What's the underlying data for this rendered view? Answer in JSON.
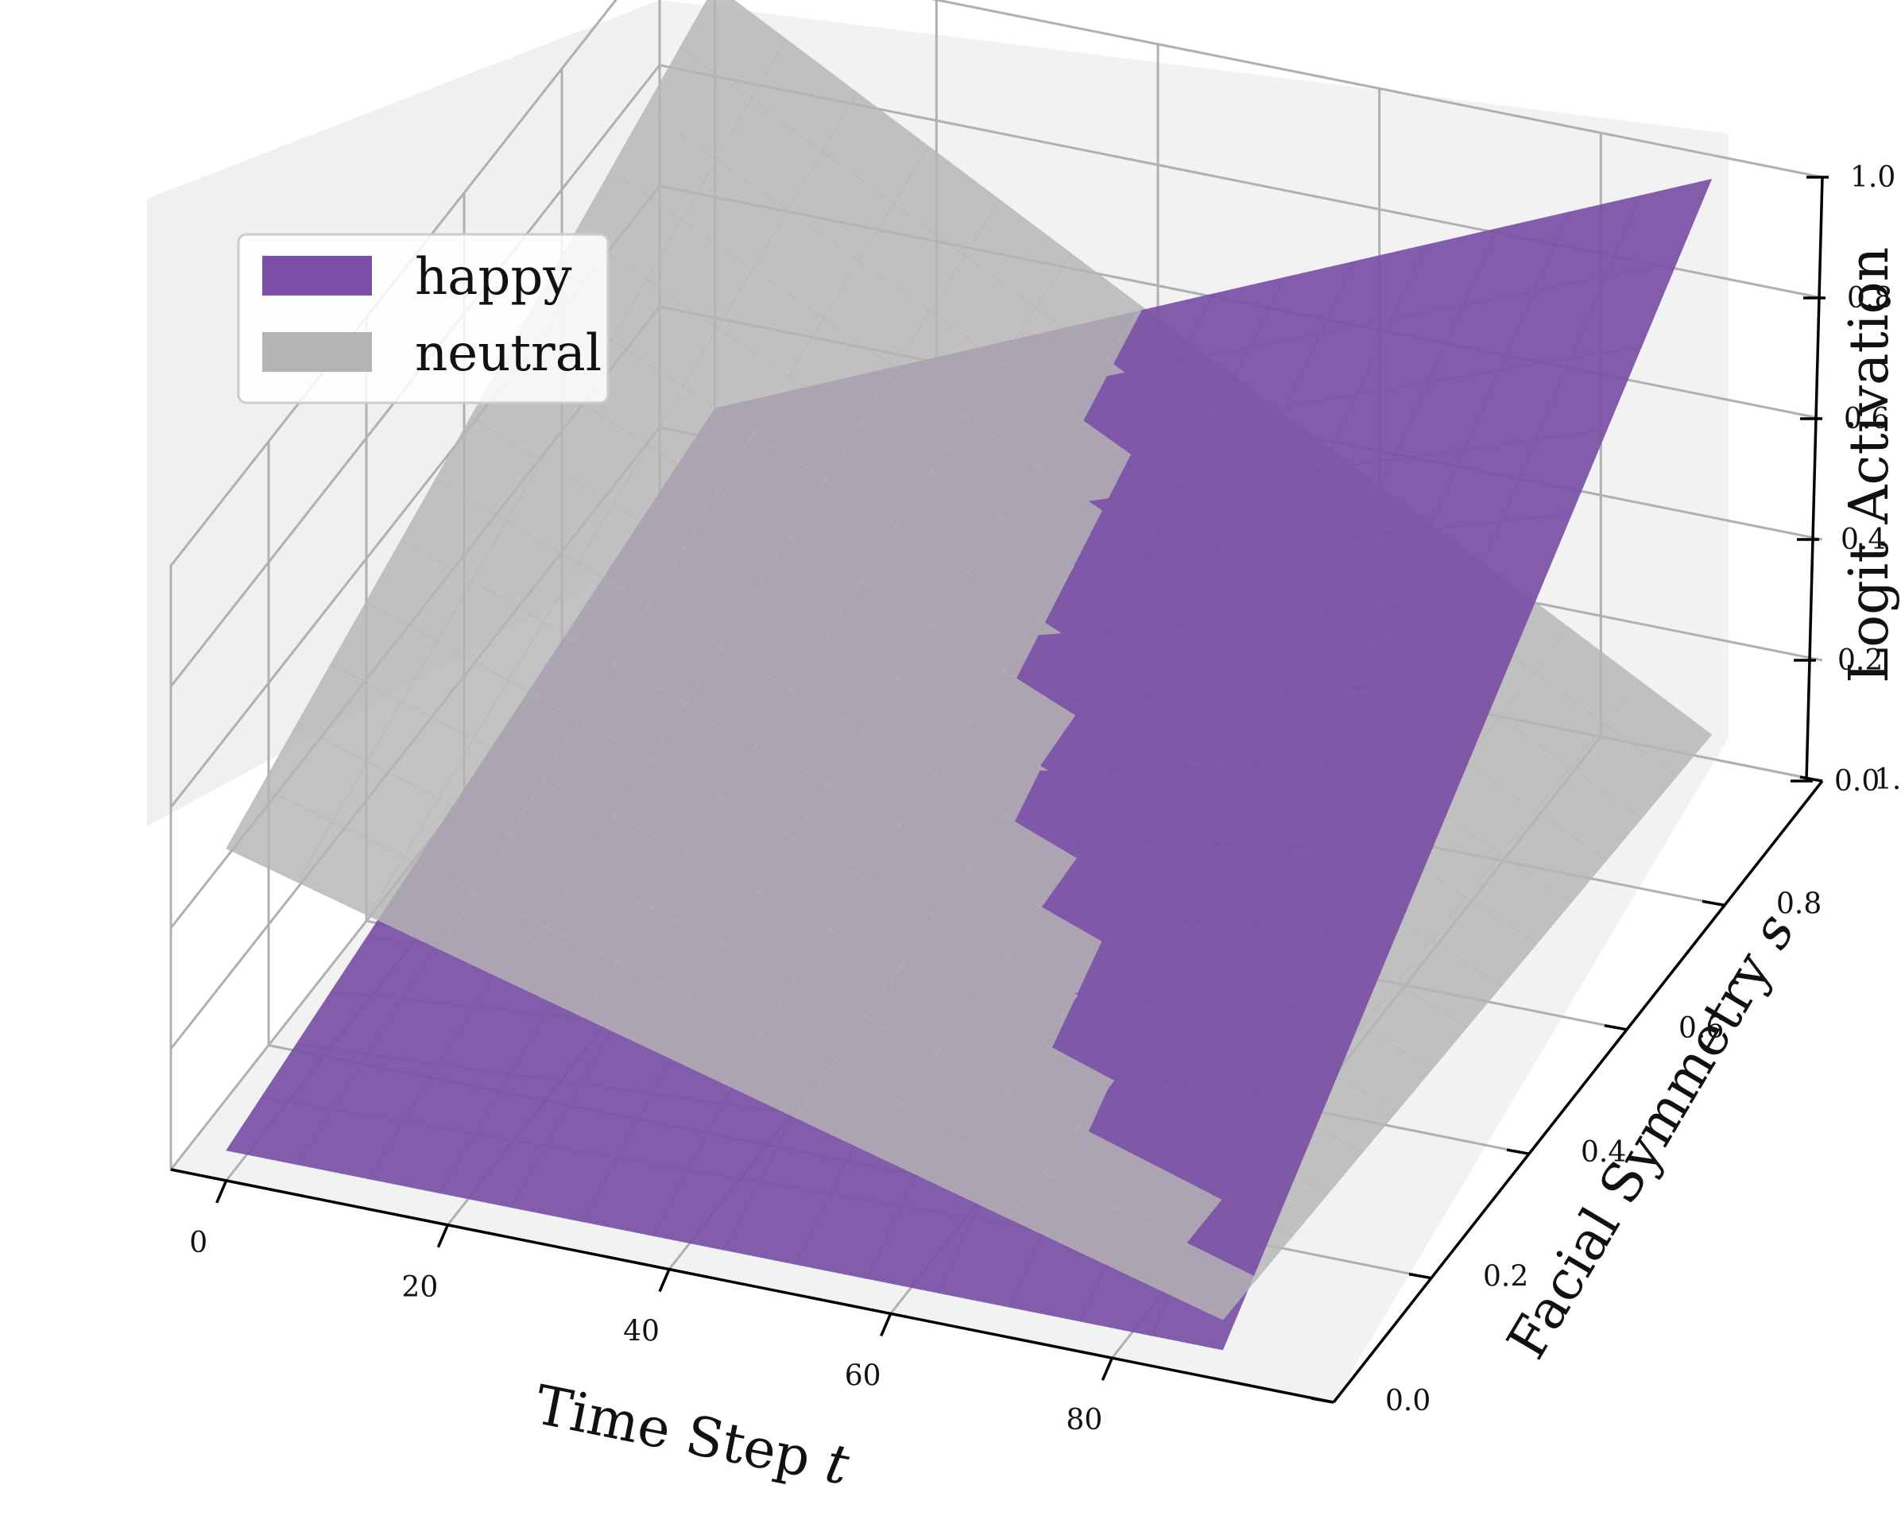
{
  "chart_data": {
    "type": "surface3d",
    "title": "",
    "xlabel_text": "Time Step ",
    "xlabel_var": "t",
    "ylabel_text": "Facial Symmetry ",
    "ylabel_var": "s",
    "zlabel": "Logit Activation",
    "xlim": [
      -5,
      100
    ],
    "ylim": [
      0.0,
      1.0
    ],
    "zlim": [
      0.0,
      1.0
    ],
    "x_ticks": [
      "0",
      "20",
      "40",
      "60",
      "80"
    ],
    "y_ticks": [
      "0.0",
      "0.2",
      "0.4",
      "0.6",
      "0.8",
      "1.0"
    ],
    "z_ticks": [
      "0.0",
      "0.2",
      "0.4",
      "0.6",
      "0.8",
      "1.0"
    ],
    "grid": true,
    "legend_position": "top-left",
    "series": [
      {
        "name": "happy",
        "color": "#7b4fa6",
        "x_range": [
          0,
          90
        ],
        "y_range": [
          0.0,
          1.0
        ],
        "corner_values": {
          "t0_s0": 0.05,
          "t90_s0": 0.05,
          "t0_s1": 0.25,
          "t90_s1": 0.96
        }
      },
      {
        "name": "neutral",
        "color": "#b4b4b4",
        "x_range": [
          0,
          90
        ],
        "y_range": [
          0.0,
          1.0
        ],
        "corner_values": {
          "t0_s0": 0.55,
          "t90_s0": 0.1,
          "t0_s1": 0.95,
          "t90_s1": 0.04
        }
      }
    ]
  }
}
